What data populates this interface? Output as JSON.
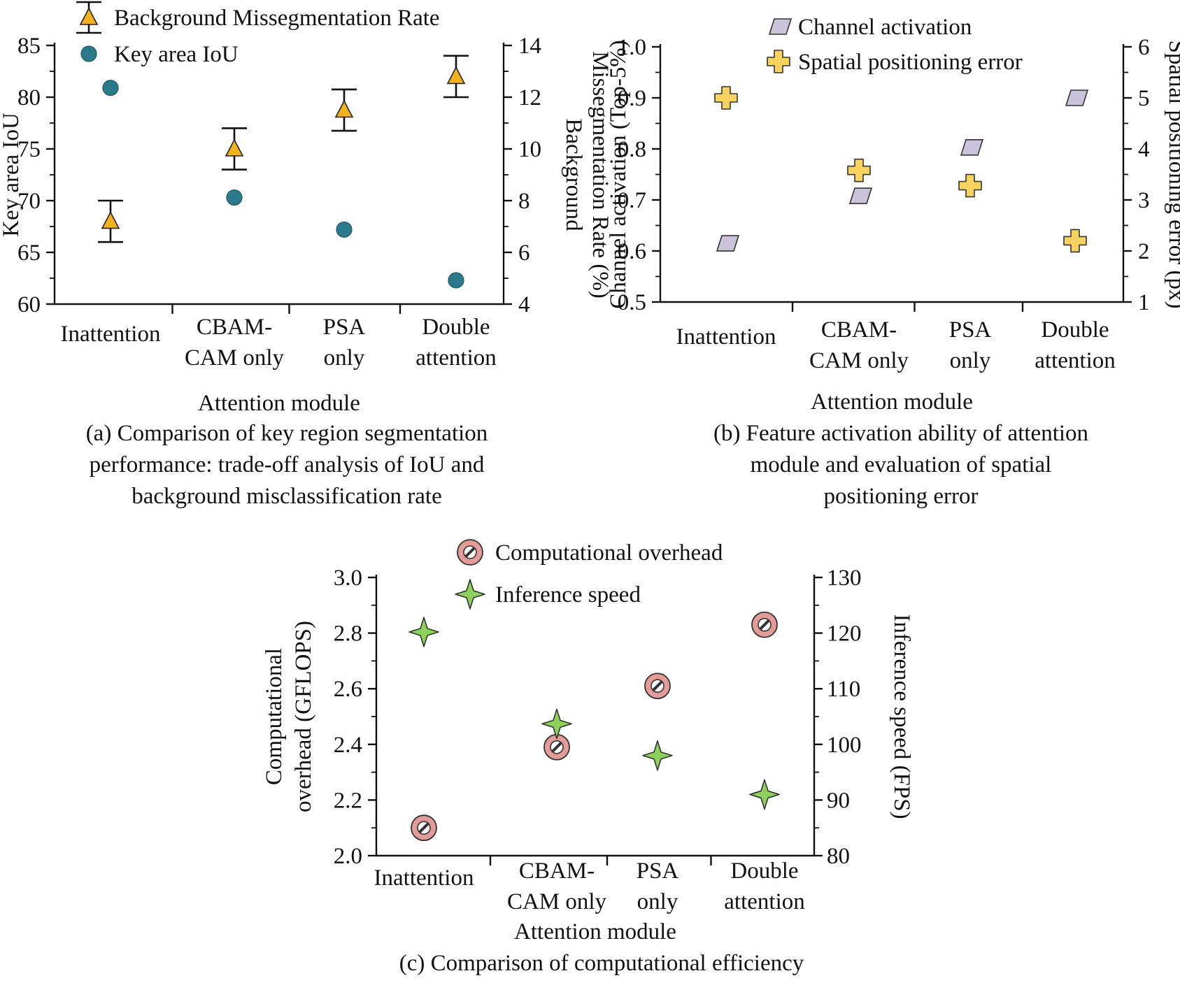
{
  "chart_data": [
    {
      "id": "a",
      "type": "scatter",
      "caption": [
        "(a) Comparison of key region segmentation",
        "performance: trade-off analysis of IoU and",
        "background misclassification rate"
      ],
      "xlabel": "Attention module",
      "categories": [
        [
          "Inattention"
        ],
        [
          "CBAM-",
          "CAM only"
        ],
        [
          "PSA",
          "only"
        ],
        [
          "Double",
          "attention"
        ]
      ],
      "left_axis": {
        "label": [
          "Key area IoU"
        ],
        "ylim": [
          60,
          85
        ],
        "ticks": [
          60,
          65,
          70,
          75,
          80,
          85
        ]
      },
      "right_axis": {
        "label": [
          "Background",
          "Missegmentation Rate (%)"
        ],
        "ylim": [
          4,
          14
        ],
        "ticks": [
          4,
          6,
          8,
          10,
          12,
          14
        ]
      },
      "series": [
        {
          "name": "Background Missegmentation Rate",
          "axis": "right",
          "marker": "triangle",
          "color": "#f2b21e",
          "values": [
            7.2,
            10.0,
            11.5,
            12.8
          ],
          "err": [
            0.8,
            0.8,
            0.8,
            0.8
          ]
        },
        {
          "name": "Key area IoU",
          "axis": "left",
          "marker": "circle",
          "color": "#2b7a8c",
          "values": [
            80.9,
            70.3,
            67.2,
            62.3
          ]
        }
      ]
    },
    {
      "id": "b",
      "type": "scatter",
      "caption": [
        "(b) Feature activation ability of attention",
        "module and evaluation of spatial",
        "positioning error"
      ],
      "xlabel": "Attention module",
      "categories": [
        [
          "Inattention"
        ],
        [
          "CBAM-",
          "CAM only"
        ],
        [
          "PSA",
          "only"
        ],
        [
          "Double",
          "attention"
        ]
      ],
      "left_axis": {
        "label": [
          "Channel activation (Top-5%)"
        ],
        "ylim": [
          0.5,
          1.0
        ],
        "ticks": [
          "0.5",
          "0.6",
          "0.7",
          "0.8",
          "0.9",
          "1.0"
        ]
      },
      "right_axis": {
        "label": [
          "Spatial positioning error (px)"
        ],
        "ylim": [
          1,
          6
        ],
        "ticks": [
          1,
          2,
          3,
          4,
          5,
          6
        ]
      },
      "series": [
        {
          "name": "Channel activation",
          "axis": "left",
          "marker": "parallelogram",
          "color": "#cbc3dc",
          "values": [
            0.615,
            0.708,
            0.803,
            0.9
          ]
        },
        {
          "name": "Spatial positioning error",
          "axis": "right",
          "marker": "cross",
          "color": "#f8d25e",
          "values": [
            5.0,
            3.58,
            3.28,
            2.2
          ]
        }
      ]
    },
    {
      "id": "c",
      "type": "scatter",
      "caption": [
        "(c) Comparison of computational efficiency"
      ],
      "xlabel": "Attention module",
      "categories": [
        [
          "Inattention"
        ],
        [
          "CBAM-",
          "CAM only"
        ],
        [
          "PSA",
          "only"
        ],
        [
          "Double",
          "attention"
        ]
      ],
      "left_axis": {
        "label": [
          "Computational",
          "overhead (GFLOPS)"
        ],
        "ylim": [
          2.0,
          3.0
        ],
        "ticks": [
          "2.0",
          "2.2",
          "2.4",
          "2.6",
          "2.8",
          "3.0"
        ]
      },
      "right_axis": {
        "label": [
          "Inference speed (FPS)"
        ],
        "ylim": [
          80,
          130
        ],
        "ticks": [
          80,
          90,
          100,
          110,
          120,
          130
        ]
      },
      "series": [
        {
          "name": "Computational overhead",
          "axis": "left",
          "marker": "nosign",
          "color": "#e39c98",
          "values": [
            2.1,
            2.39,
            2.61,
            2.83
          ]
        },
        {
          "name": "Inference speed",
          "axis": "right",
          "marker": "star4",
          "color": "#8ed15a",
          "values": [
            120.2,
            103.7,
            98.0,
            91.0
          ]
        }
      ]
    }
  ]
}
